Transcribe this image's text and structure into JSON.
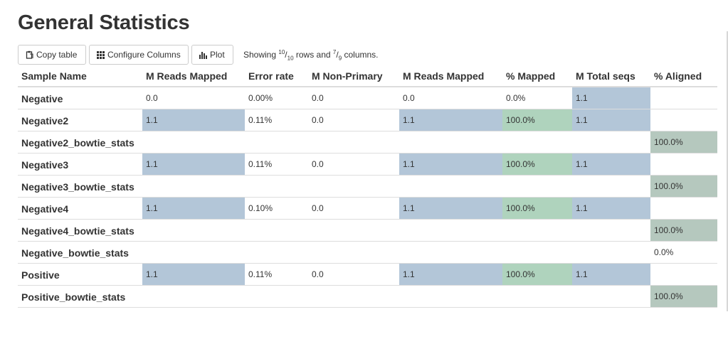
{
  "title": "General Statistics",
  "toolbar": {
    "copy_label": "Copy table",
    "config_label": "Configure Columns",
    "plot_label": "Plot",
    "showing_prefix": "Showing ",
    "rows_shown": "10",
    "rows_total": "10",
    "rows_word": " rows and ",
    "cols_shown": "7",
    "cols_total": "9",
    "cols_word": " columns."
  },
  "icons": {
    "copy": "clipboard-icon",
    "config": "grid-icon",
    "plot": "bar-chart-icon"
  },
  "colors": {
    "blue_cell": "#b3c6d8",
    "green_cell": "#afd3bd",
    "grey_green_cell": "#b5c8be"
  },
  "table": {
    "headers": [
      "Sample Name",
      "M Reads Mapped",
      "Error rate",
      "M Non-Primary",
      "M Reads Mapped",
      "% Mapped",
      "M Total seqs",
      "% Aligned"
    ],
    "rows": [
      [
        "Negative",
        "0.0",
        "0.00%",
        "0.0",
        "0.0",
        "0.0%",
        "1.1",
        ""
      ],
      [
        "Negative2",
        "1.1",
        "0.11%",
        "0.0",
        "1.1",
        "100.0%",
        "1.1",
        ""
      ],
      [
        "Negative2_bowtie_stats",
        "",
        "",
        "",
        "",
        "",
        "",
        "100.0%"
      ],
      [
        "Negative3",
        "1.1",
        "0.11%",
        "0.0",
        "1.1",
        "100.0%",
        "1.1",
        ""
      ],
      [
        "Negative3_bowtie_stats",
        "",
        "",
        "",
        "",
        "",
        "",
        "100.0%"
      ],
      [
        "Negative4",
        "1.1",
        "0.10%",
        "0.0",
        "1.1",
        "100.0%",
        "1.1",
        ""
      ],
      [
        "Negative4_bowtie_stats",
        "",
        "",
        "",
        "",
        "",
        "",
        "100.0%"
      ],
      [
        "Negative_bowtie_stats",
        "",
        "",
        "",
        "",
        "",
        "",
        "0.0%"
      ],
      [
        "Positive",
        "1.1",
        "0.11%",
        "0.0",
        "1.1",
        "100.0%",
        "1.1",
        ""
      ],
      [
        "Positive_bowtie_stats",
        "",
        "",
        "",
        "",
        "",
        "",
        "100.0%"
      ]
    ],
    "shaded_cells": [
      [
        "",
        "",
        "",
        "",
        "",
        "",
        "blue",
        ""
      ],
      [
        "",
        "blue",
        "",
        "",
        "blue",
        "green",
        "blue",
        ""
      ],
      [
        "",
        "",
        "",
        "",
        "",
        "",
        "",
        "grey"
      ],
      [
        "",
        "blue",
        "",
        "",
        "blue",
        "green",
        "blue",
        ""
      ],
      [
        "",
        "",
        "",
        "",
        "",
        "",
        "",
        "grey"
      ],
      [
        "",
        "blue",
        "",
        "",
        "blue",
        "green",
        "blue",
        ""
      ],
      [
        "",
        "",
        "",
        "",
        "",
        "",
        "",
        "grey"
      ],
      [
        "",
        "",
        "",
        "",
        "",
        "",
        "",
        ""
      ],
      [
        "",
        "blue",
        "",
        "",
        "blue",
        "green",
        "blue",
        ""
      ],
      [
        "",
        "",
        "",
        "",
        "",
        "",
        "",
        "grey"
      ]
    ]
  }
}
